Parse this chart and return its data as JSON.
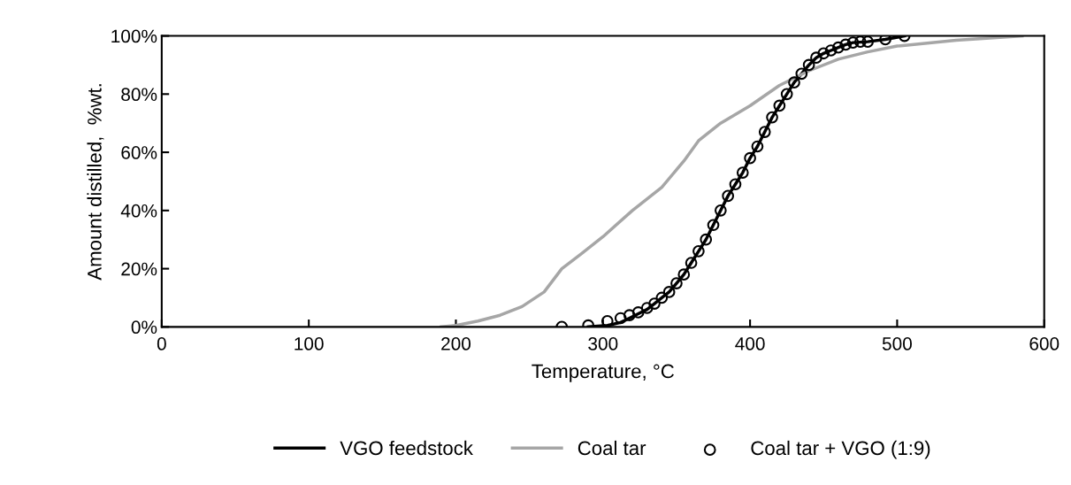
{
  "chart_data": {
    "type": "line",
    "xlabel": "Temperature, °C",
    "ylabel": "Amount distilled,  %wt.",
    "xlim": [
      0,
      600
    ],
    "xticks": [
      0,
      100,
      200,
      300,
      400,
      500,
      600
    ],
    "ylim": [
      0,
      100
    ],
    "yticks": [
      {
        "value": 0,
        "label": "0%"
      },
      {
        "value": 20,
        "label": "20%"
      },
      {
        "value": 40,
        "label": "40%"
      },
      {
        "value": 60,
        "label": "60%"
      },
      {
        "value": 80,
        "label": "80%"
      },
      {
        "value": 100,
        "label": "100%"
      }
    ],
    "grid": false,
    "legend": "bottom",
    "series": [
      {
        "name": "VGO feedstock",
        "color": "#000000",
        "marker": "none",
        "x": [
          290,
          303,
          312,
          318,
          324,
          330,
          335,
          340,
          345,
          350,
          355,
          360,
          365,
          370,
          375,
          380,
          385,
          390,
          395,
          400,
          405,
          410,
          415,
          420,
          425,
          430,
          435,
          440,
          445,
          450,
          455,
          460,
          465,
          470,
          480,
          492,
          505
        ],
        "values": [
          0,
          0.5,
          1.5,
          3,
          4.5,
          6,
          8,
          10,
          12,
          15,
          18,
          22,
          26,
          30,
          35,
          40,
          45,
          49,
          53,
          58,
          62,
          67,
          72,
          76,
          80,
          84,
          87,
          90,
          92.5,
          94,
          95,
          96,
          97,
          97.7,
          98,
          98.8,
          100
        ]
      },
      {
        "name": "Coal tar",
        "color": "#a6a6a6",
        "marker": "none",
        "x": [
          190,
          200,
          215,
          230,
          245,
          260,
          272,
          285,
          300,
          320,
          340,
          355,
          365,
          380,
          400,
          420,
          440,
          460,
          480,
          500,
          540,
          585
        ],
        "values": [
          0,
          0.5,
          2,
          4,
          7,
          12,
          20,
          25,
          31,
          40,
          48,
          57,
          64,
          70,
          76,
          83,
          88,
          92,
          94.5,
          96.5,
          98.5,
          100
        ]
      },
      {
        "name": "Coal tar + VGO (1:9)",
        "type": "scatter",
        "color": "#000000",
        "marker": "circle",
        "x": [
          272,
          290,
          303,
          312,
          318,
          324,
          330,
          335,
          340,
          345,
          350,
          355,
          360,
          365,
          370,
          375,
          380,
          385,
          390,
          395,
          400,
          405,
          410,
          415,
          420,
          425,
          430,
          435,
          440,
          445,
          450,
          455,
          460,
          465,
          470,
          475,
          480,
          492,
          505
        ],
        "values": [
          0,
          0.5,
          2,
          3,
          4,
          5,
          6.5,
          8,
          10,
          12,
          15,
          18,
          22,
          26,
          30,
          35,
          40,
          45,
          49,
          53,
          58,
          62,
          67,
          72,
          76,
          80,
          84,
          87,
          90,
          92.5,
          94,
          95,
          96,
          97,
          97.7,
          98,
          98,
          98.8,
          100
        ]
      }
    ]
  }
}
